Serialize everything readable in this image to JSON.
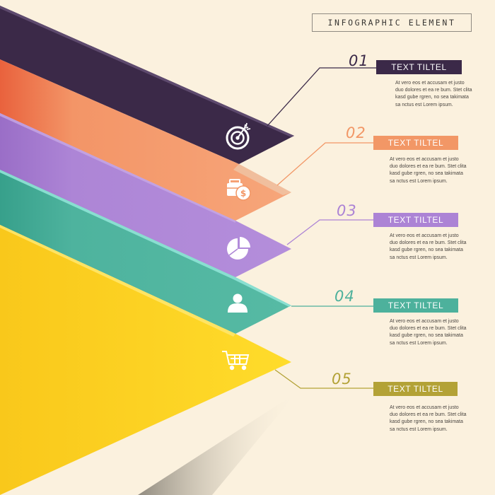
{
  "header": {
    "title": "INFOGRAPHIC ELEMENT"
  },
  "steps": [
    {
      "number": "01",
      "label": "TEXT TILTEL",
      "icon": "target-icon",
      "color": "#3b2948",
      "text": "At vero eos et accusam et justo duo dolores et ea re bum. Stet clita kasd gube rgren, no sea takimata sa nctus est Lorem ipsum."
    },
    {
      "number": "02",
      "label": "TEXT TILTEL",
      "icon": "money-bag-icon",
      "color": "#f29766",
      "text": "At vero eos et accusam et justo duo dolores et ea re bum. Stet clita kasd gube rgren, no sea takimata sa nctus est Lorem ipsum."
    },
    {
      "number": "03",
      "label": "TEXT TILTEL",
      "icon": "pie-chart-icon",
      "color": "#ac83d5",
      "text": "At vero eos et accusam et justo duo dolores et ea re bum. Stet clita kasd gube rgren, no sea takimata sa nctus est Lorem ipsum."
    },
    {
      "number": "04",
      "label": "TEXT TILTEL",
      "icon": "user-icon",
      "color": "#4db19c",
      "text": "At vero eos et accusam et justo duo dolores et ea re bum. Stet clita kasd gube rgren, no sea takimata sa nctus est Lorem ipsum."
    },
    {
      "number": "05",
      "label": "TEXT TILTEL",
      "icon": "shopping-cart-icon",
      "color": "#b3a236",
      "text": "At vero eos et accusam et justo duo dolores et ea re bum. Stet clita kasd gube rgren, no sea takimata sa nctus est Lorem ipsum."
    }
  ],
  "colors": {
    "background": "#fbf1de",
    "band_purple": "#3b2948",
    "band_orange": "#f29766",
    "band_lavender": "#ac83d5",
    "band_teal": "#4db19c",
    "band_yellow": "#fdd724",
    "label_05": "#b3a236",
    "icon_white": "#ffffff"
  }
}
